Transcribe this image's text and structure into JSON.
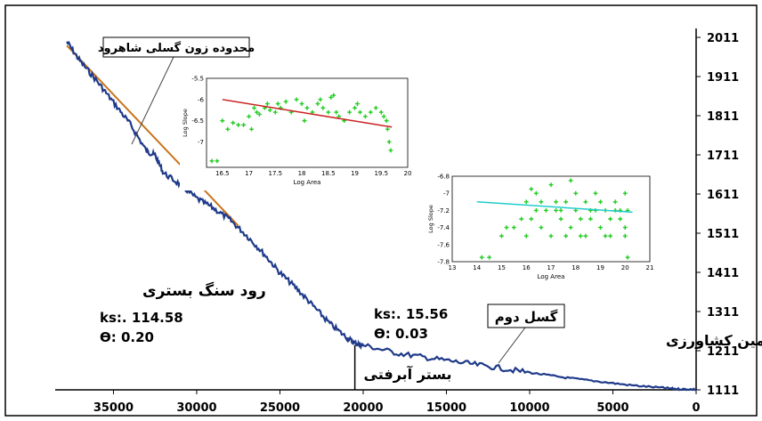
{
  "chart_data": [
    {
      "type": "line",
      "xlabel": "",
      "ylabel": "",
      "x_reversed": true,
      "xlim": [
        38500,
        0
      ],
      "ylim": [
        1111,
        2011
      ],
      "x_ticks": [
        "35000",
        "30000",
        "25000",
        "20000",
        "15000",
        "10000",
        "5000",
        "0"
      ],
      "x_tick_values": [
        35000,
        30000,
        25000,
        20000,
        15000,
        10000,
        5000,
        0
      ],
      "y_ticks": [
        "2011",
        "1911",
        "1811",
        "1711",
        "1611",
        "1511",
        "1411",
        "1311",
        "1211",
        "1111"
      ],
      "y_tick_values": [
        2011,
        1911,
        1811,
        1711,
        1611,
        1511,
        1411,
        1311,
        1211,
        1111
      ],
      "series": [
        {
          "color": "#1f3a8a",
          "x": [
            37800,
            37000,
            36000,
            35000,
            34000,
            33000,
            32500,
            32000,
            31000,
            30000,
            29000,
            28000,
            27000,
            26000,
            25000,
            24000,
            23000,
            22000,
            21000,
            20500,
            20000,
            18000,
            16000,
            14000,
            12000,
            10000,
            8000,
            6000,
            4000,
            2000,
            1000,
            0
          ],
          "y": [
            2000,
            1950,
            1900,
            1845,
            1790,
            1720,
            1710,
            1665,
            1635,
            1600,
            1575,
            1545,
            1505,
            1460,
            1410,
            1370,
            1325,
            1280,
            1245,
            1230,
            1225,
            1205,
            1192,
            1180,
            1168,
            1155,
            1143,
            1133,
            1123,
            1116,
            1113,
            1112
          ]
        }
      ],
      "fit_line": {
        "color": "#c8741a",
        "x": [
          37800,
          27500
        ],
        "y": [
          1990,
          1530
        ]
      },
      "divider_x": 20500,
      "annotations": {
        "fault_zone": "محدوده زون گسلی شاهرود",
        "second_fault": "گسل دوم",
        "bedrock_river": "رود سنگ بستری",
        "agricultural_land": "زمین کشاورزی",
        "alluvial_bed": "بستر آبرفتی",
        "bedrock_ks": "ks:. 114.58",
        "bedrock_theta": "ϴ:  0.20",
        "alluvial_ks": "ks:. 15.56",
        "alluvial_theta": "ϴ:  0.03"
      }
    },
    {
      "type": "scatter",
      "xlabel": "Log Area",
      "ylabel": "Log Slope",
      "xlim": [
        16.2,
        20
      ],
      "ylim": [
        -7.6,
        -5.5
      ],
      "x_ticks": [
        "16.5",
        "17",
        "17.5",
        "18",
        "18.5",
        "19",
        "19.5",
        "20"
      ],
      "x_tick_values": [
        16.5,
        17,
        17.5,
        18,
        18.5,
        19,
        19.5,
        20
      ],
      "y_ticks": [
        "-5.5",
        "-6",
        "-6.5",
        "-7"
      ],
      "y_tick_values": [
        -5.5,
        -6,
        -6.5,
        -7
      ],
      "point_color": "#22cc22",
      "line_color": "#cc2222",
      "points_x": [
        16.3,
        16.4,
        16.5,
        16.6,
        16.7,
        16.8,
        16.9,
        17.0,
        17.05,
        17.1,
        17.15,
        17.2,
        17.3,
        17.35,
        17.4,
        17.5,
        17.55,
        17.6,
        17.7,
        17.8,
        17.9,
        18.0,
        18.05,
        18.1,
        18.2,
        18.3,
        18.35,
        18.4,
        18.5,
        18.55,
        18.6,
        18.65,
        18.7,
        18.8,
        18.9,
        19.0,
        19.05,
        19.1,
        19.2,
        19.3,
        19.4,
        19.5,
        19.55,
        19.6,
        19.62,
        19.65,
        19.68
      ],
      "points_y": [
        -7.45,
        -7.45,
        -6.5,
        -6.7,
        -6.55,
        -6.6,
        -6.6,
        -6.4,
        -6.7,
        -6.2,
        -6.3,
        -6.35,
        -6.2,
        -6.1,
        -6.25,
        -6.3,
        -6.1,
        -6.2,
        -6.05,
        -6.3,
        -6.0,
        -6.1,
        -6.5,
        -6.2,
        -6.3,
        -6.1,
        -6.0,
        -6.2,
        -6.3,
        -5.95,
        -5.9,
        -6.3,
        -6.4,
        -6.5,
        -6.3,
        -6.2,
        -6.1,
        -6.3,
        -6.4,
        -6.3,
        -6.2,
        -6.3,
        -6.4,
        -6.5,
        -6.7,
        -7.0,
        -7.2
      ],
      "fit_x": [
        16.5,
        19.7
      ],
      "fit_y": [
        -6.0,
        -6.65
      ]
    },
    {
      "type": "scatter",
      "xlabel": "Log Area",
      "ylabel": "Log Slope",
      "xlim": [
        13,
        21
      ],
      "ylim": [
        -7.8,
        -6.8
      ],
      "x_ticks": [
        "13",
        "14",
        "15",
        "16",
        "17",
        "18",
        "19",
        "20",
        "21"
      ],
      "x_tick_values": [
        13,
        14,
        15,
        16,
        17,
        18,
        19,
        20,
        21
      ],
      "y_ticks": [
        "-6.8",
        "-7",
        "-7.2",
        "-7.4",
        "-7.6",
        "-7.8"
      ],
      "y_tick_values": [
        -6.8,
        -7,
        -7.2,
        -7.4,
        -7.6,
        -7.8
      ],
      "point_color": "#22cc22",
      "line_color": "#22cccc",
      "points_x": [
        14.2,
        14.5,
        15,
        15.2,
        15.5,
        15.8,
        16,
        16.2,
        16.4,
        16.6,
        16.8,
        17,
        17.2,
        17.4,
        17.6,
        17.8,
        18,
        18.2,
        18.4,
        18.6,
        18.8,
        19,
        19.2,
        19.4,
        19.6,
        19.8,
        20,
        20.1,
        16.2,
        16.6,
        17.0,
        17.4,
        17.8,
        18.2,
        18.6,
        19.0,
        19.4,
        19.8,
        20.0,
        16.4,
        17.2,
        18.0,
        18.8,
        19.6,
        20.1,
        16.0,
        17.6,
        18.4,
        19.2,
        20.0
      ],
      "points_y": [
        -7.75,
        -7.75,
        -7.5,
        -7.4,
        -7.4,
        -7.3,
        -7.1,
        -6.95,
        -7.0,
        -7.1,
        -7.2,
        -6.9,
        -7.1,
        -7.2,
        -7.1,
        -6.85,
        -7.0,
        -7.3,
        -7.1,
        -7.2,
        -7.0,
        -7.1,
        -7.2,
        -7.3,
        -7.1,
        -7.2,
        -7.0,
        -7.75,
        -7.3,
        -7.4,
        -7.5,
        -7.3,
        -7.4,
        -7.5,
        -7.3,
        -7.4,
        -7.5,
        -7.3,
        -7.4,
        -7.2,
        -7.2,
        -7.2,
        -7.2,
        -7.2,
        -7.2,
        -7.5,
        -7.5,
        -7.5,
        -7.5,
        -7.5
      ],
      "fit_x": [
        14,
        20.3
      ],
      "fit_y": [
        -7.1,
        -7.22
      ]
    }
  ]
}
